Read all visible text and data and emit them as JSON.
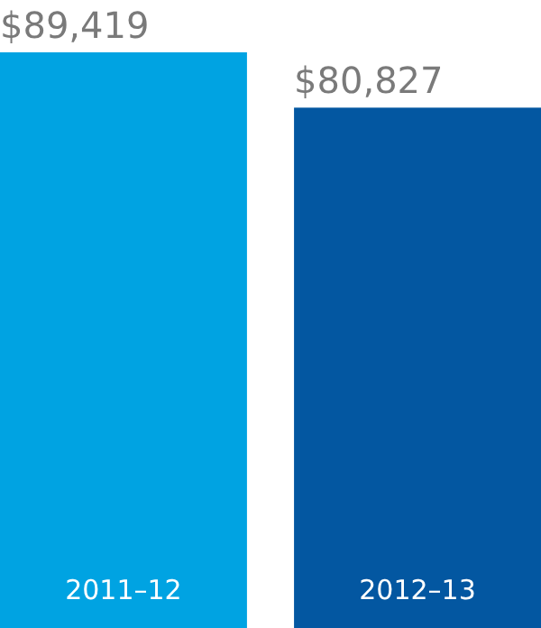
{
  "chart_data": {
    "type": "bar",
    "categories": [
      "2011–12",
      "2012–13"
    ],
    "values": [
      89419,
      80827
    ],
    "colors": [
      "#00a3e2",
      "#0357a1"
    ],
    "value_labels": [
      "$89,419",
      "$80,827"
    ],
    "tick_labels": "x"
  }
}
